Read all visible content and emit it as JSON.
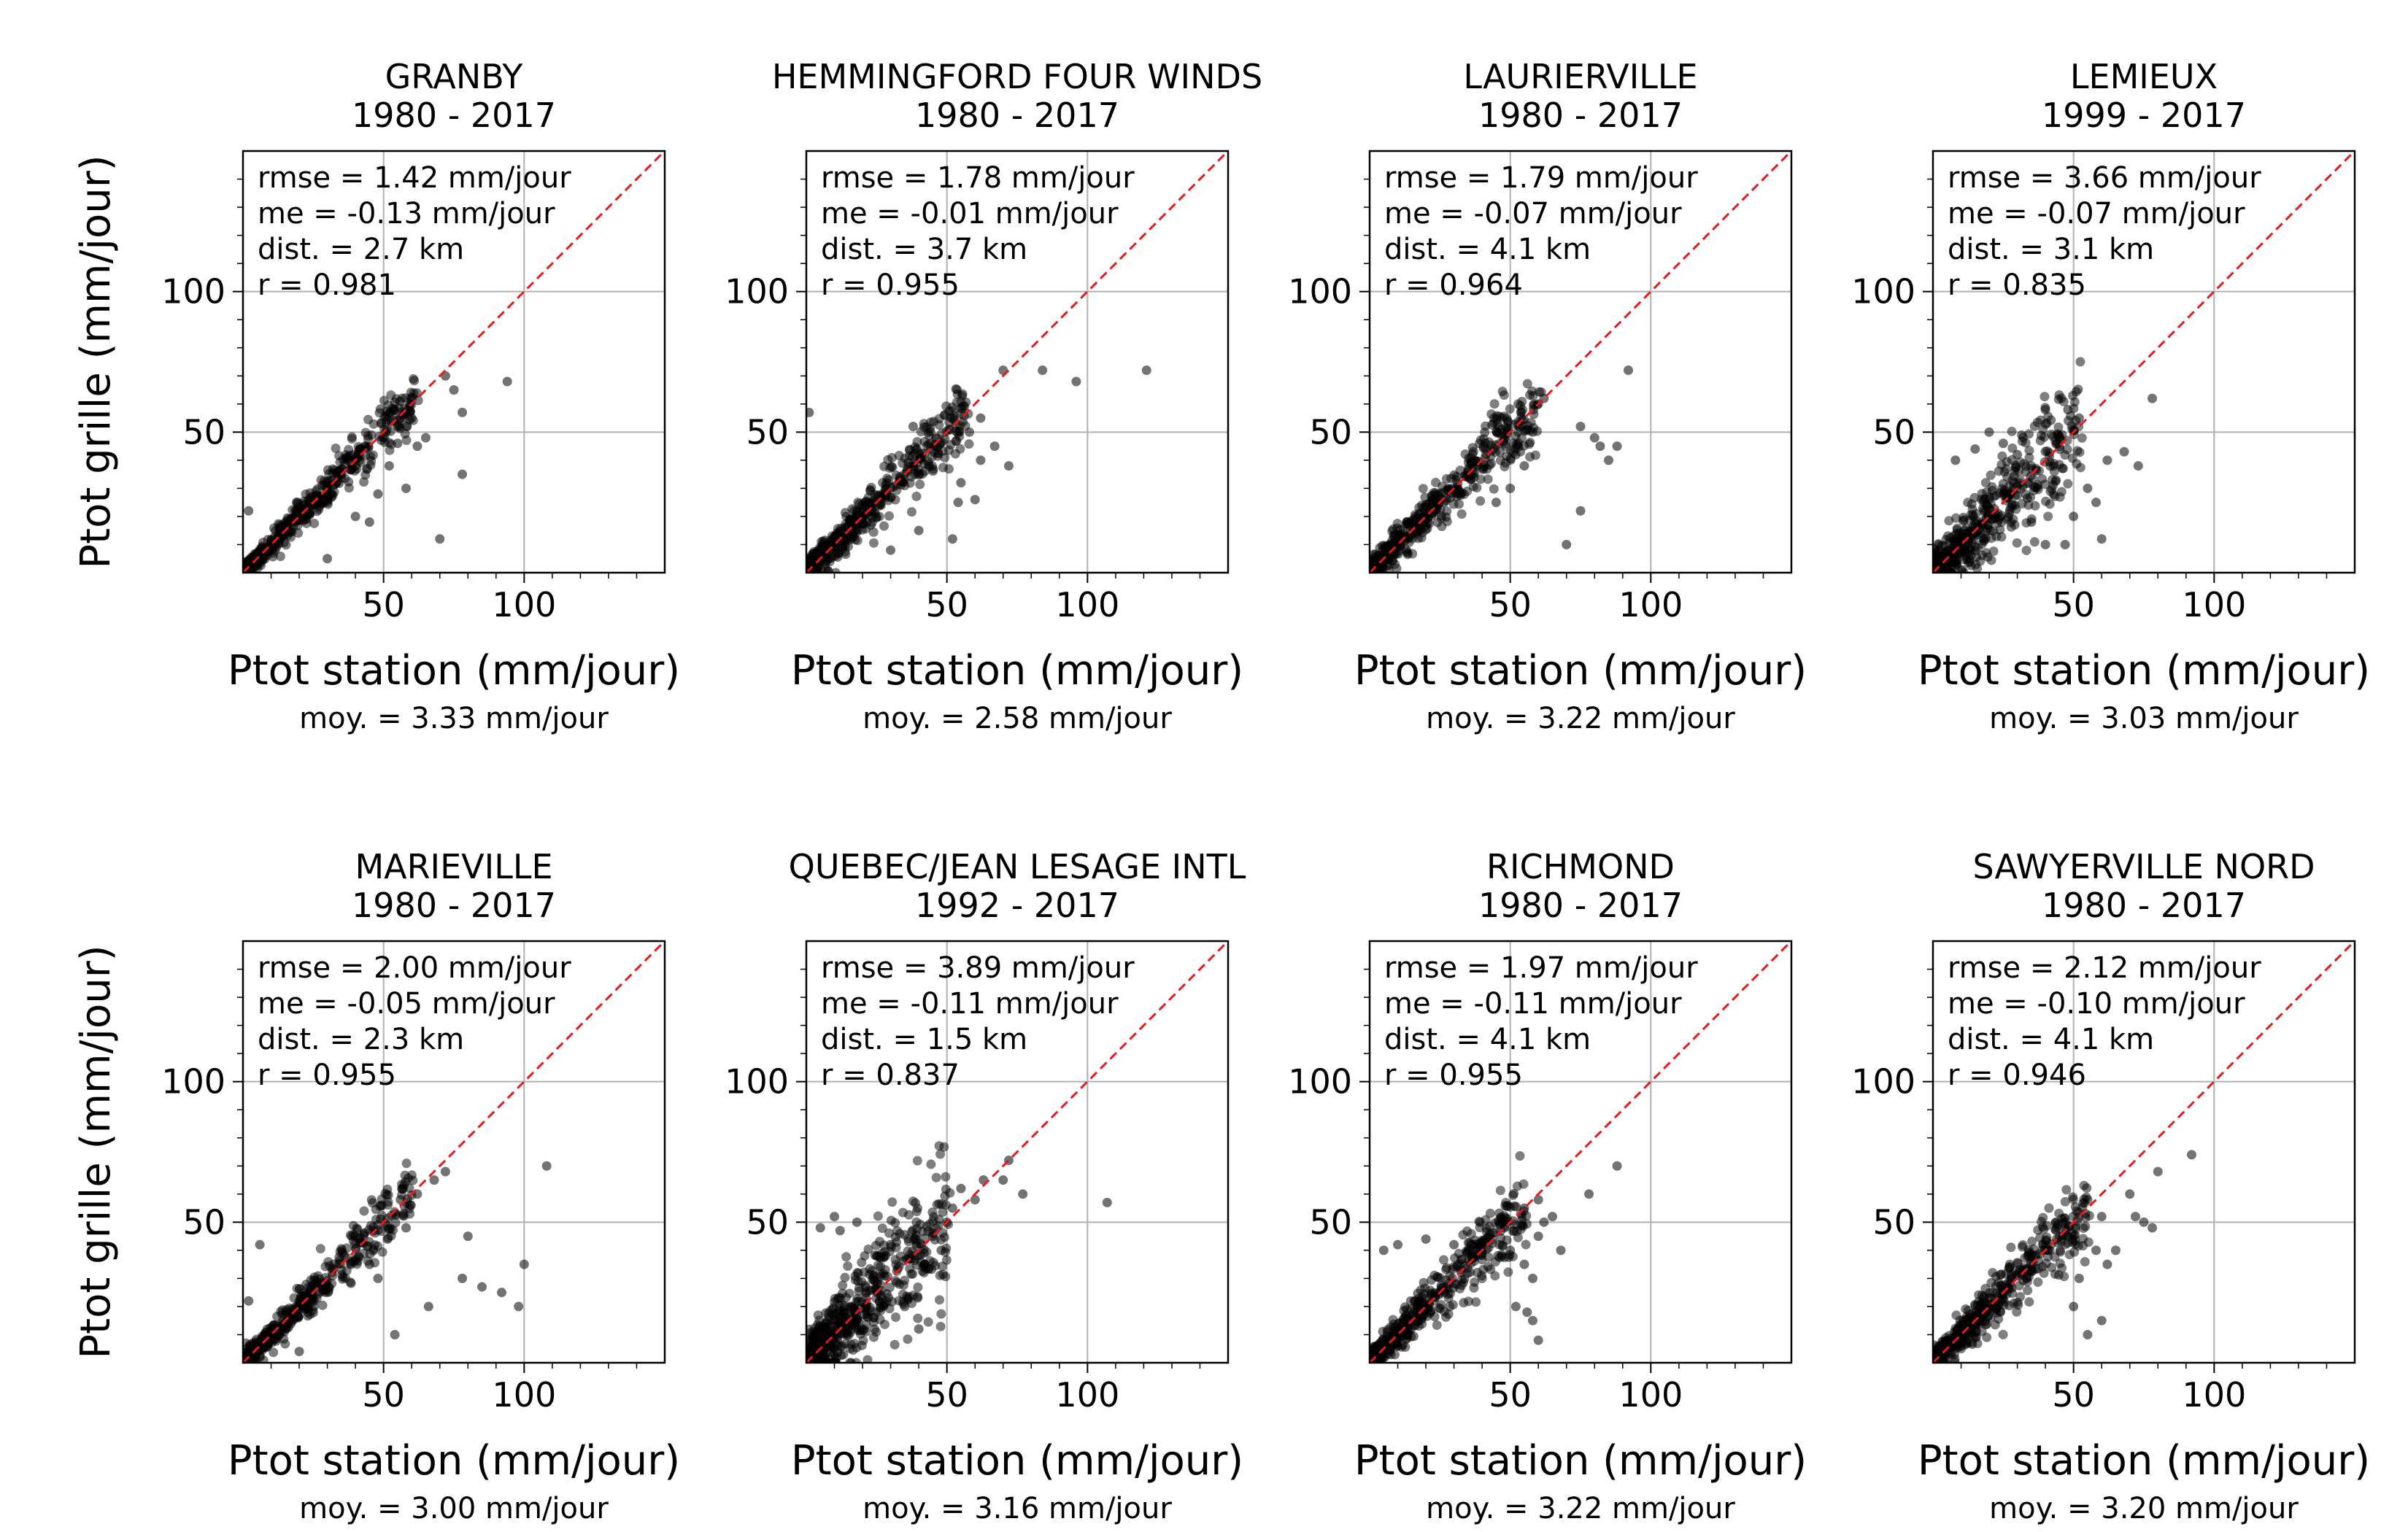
{
  "figure": {
    "ylabel": "Ptot grille (mm/jour)",
    "xlabel": "Ptot station (mm/jour)",
    "xticks": [
      50,
      100
    ],
    "yticks": [
      50,
      100
    ],
    "xlim": [
      0,
      150
    ],
    "ylim": [
      0,
      150
    ],
    "point_color": "#000000",
    "line_color": "#e41a1c",
    "grid_color": "#b0b0b0",
    "marker_type": "scatter"
  },
  "chart_data": [
    {
      "type": "scatter",
      "title": "GRANBY",
      "period": "1980 - 2017",
      "stats": [
        "rmse = 1.42 mm/jour",
        "me = -0.13 mm/jour",
        "dist. = 2.7 km",
        "r = 0.981"
      ],
      "mean_label": "moy. = 3.33 mm/jour",
      "outliers": [
        [
          72,
          70
        ],
        [
          94,
          68
        ],
        [
          75,
          65
        ],
        [
          78,
          57
        ],
        [
          70,
          12
        ],
        [
          78,
          35
        ],
        [
          60,
          55
        ],
        [
          55,
          46
        ],
        [
          52,
          38
        ],
        [
          48,
          28
        ],
        [
          65,
          48
        ],
        [
          62,
          45
        ],
        [
          40,
          20
        ],
        [
          45,
          18
        ],
        [
          58,
          30
        ],
        [
          2,
          22
        ],
        [
          30,
          5
        ]
      ],
      "cluster": {
        "max": 62,
        "spread": 3.5,
        "n": 520
      }
    },
    {
      "type": "scatter",
      "title": "HEMMINGFORD FOUR WINDS",
      "period": "1980 - 2017",
      "stats": [
        "rmse = 1.78 mm/jour",
        "me = -0.01 mm/jour",
        "dist. = 3.7 km",
        "r = 0.955"
      ],
      "mean_label": "moy. = 2.58 mm/jour",
      "outliers": [
        [
          84,
          72
        ],
        [
          96,
          68
        ],
        [
          121,
          72
        ],
        [
          70,
          72
        ],
        [
          62,
          55
        ],
        [
          58,
          50
        ],
        [
          67,
          45
        ],
        [
          72,
          38
        ],
        [
          54,
          25
        ],
        [
          62,
          40
        ],
        [
          55,
          32
        ],
        [
          52,
          12
        ],
        [
          60,
          26
        ],
        [
          1,
          57
        ],
        [
          30,
          8
        ],
        [
          40,
          15
        ],
        [
          38,
          52
        ]
      ],
      "cluster": {
        "max": 58,
        "spread": 5,
        "n": 520
      }
    },
    {
      "type": "scatter",
      "title": "LAURIERVILLE",
      "period": "1980 - 2017",
      "stats": [
        "rmse = 1.79 mm/jour",
        "me = -0.07 mm/jour",
        "dist. = 4.1 km",
        "r = 0.964"
      ],
      "mean_label": "moy. = 3.22 mm/jour",
      "outliers": [
        [
          92,
          72
        ],
        [
          80,
          48
        ],
        [
          75,
          52
        ],
        [
          88,
          45
        ],
        [
          85,
          40
        ],
        [
          75,
          22
        ],
        [
          70,
          10
        ],
        [
          82,
          45
        ],
        [
          58,
          50
        ],
        [
          60,
          60
        ],
        [
          62,
          62
        ],
        [
          55,
          38
        ],
        [
          50,
          30
        ],
        [
          45,
          25
        ],
        [
          48,
          48
        ],
        [
          52,
          42
        ]
      ],
      "cluster": {
        "max": 60,
        "spread": 5,
        "n": 520
      }
    },
    {
      "type": "scatter",
      "title": "LEMIEUX",
      "period": "1999 - 2017",
      "stats": [
        "rmse = 3.66 mm/jour",
        "me = -0.07 mm/jour",
        "dist. = 3.1 km",
        "r = 0.835"
      ],
      "mean_label": "moy. = 3.03 mm/jour",
      "outliers": [
        [
          78,
          62
        ],
        [
          68,
          43
        ],
        [
          73,
          38
        ],
        [
          62,
          40
        ],
        [
          48,
          58
        ],
        [
          40,
          58
        ],
        [
          50,
          20
        ],
        [
          47,
          10
        ],
        [
          58,
          25
        ],
        [
          55,
          30
        ],
        [
          52,
          55
        ],
        [
          45,
          48
        ],
        [
          20,
          50
        ],
        [
          25,
          46
        ],
        [
          30,
          42
        ],
        [
          35,
          18
        ],
        [
          8,
          40
        ],
        [
          15,
          44
        ],
        [
          40,
          10
        ],
        [
          60,
          12
        ]
      ],
      "cluster": {
        "max": 52,
        "spread": 9,
        "n": 520
      }
    },
    {
      "type": "scatter",
      "title": "MARIEVILLE",
      "period": "1980 - 2017",
      "stats": [
        "rmse = 2.00 mm/jour",
        "me = -0.05 mm/jour",
        "dist. = 2.3 km",
        "r = 0.955"
      ],
      "mean_label": "moy. = 3.00 mm/jour",
      "outliers": [
        [
          108,
          70
        ],
        [
          80,
          45
        ],
        [
          78,
          30
        ],
        [
          85,
          27
        ],
        [
          100,
          35
        ],
        [
          92,
          25
        ],
        [
          98,
          20
        ],
        [
          66,
          20
        ],
        [
          72,
          68
        ],
        [
          68,
          65
        ],
        [
          62,
          60
        ],
        [
          58,
          48
        ],
        [
          56,
          58
        ],
        [
          54,
          10
        ],
        [
          6,
          42
        ],
        [
          2,
          22
        ],
        [
          20,
          4
        ],
        [
          45,
          35
        ],
        [
          48,
          30
        ]
      ],
      "cluster": {
        "max": 60,
        "spread": 4,
        "n": 520
      }
    },
    {
      "type": "scatter",
      "title": "QUEBEC/JEAN LESAGE INTL",
      "period": "1992 - 2017",
      "stats": [
        "rmse = 3.89 mm/jour",
        "me = -0.11 mm/jour",
        "dist. = 1.5 km",
        "r = 0.837"
      ],
      "mean_label": "moy. = 3.16 mm/jour",
      "outliers": [
        [
          72,
          72
        ],
        [
          77,
          60
        ],
        [
          107,
          57
        ],
        [
          70,
          65
        ],
        [
          63,
          65
        ],
        [
          55,
          62
        ],
        [
          52,
          55
        ],
        [
          50,
          50
        ],
        [
          48,
          40
        ],
        [
          45,
          45
        ],
        [
          42,
          35
        ],
        [
          10,
          52
        ],
        [
          12,
          47
        ],
        [
          18,
          50
        ],
        [
          5,
          48
        ],
        [
          30,
          42
        ],
        [
          25,
          38
        ],
        [
          40,
          12
        ],
        [
          35,
          20
        ],
        [
          60,
          58
        ]
      ],
      "cluster": {
        "max": 50,
        "spread": 10,
        "n": 620
      }
    },
    {
      "type": "scatter",
      "title": "RICHMOND",
      "period": "1980 - 2017",
      "stats": [
        "rmse = 1.97 mm/jour",
        "me = -0.11 mm/jour",
        "dist. = 4.1 km",
        "r = 0.955"
      ],
      "mean_label": "moy. = 3.22 mm/jour",
      "outliers": [
        [
          88,
          70
        ],
        [
          78,
          60
        ],
        [
          60,
          58
        ],
        [
          55,
          55
        ],
        [
          65,
          52
        ],
        [
          62,
          50
        ],
        [
          60,
          45
        ],
        [
          68,
          40
        ],
        [
          55,
          35
        ],
        [
          58,
          30
        ],
        [
          52,
          20
        ],
        [
          60,
          8
        ],
        [
          58,
          15
        ],
        [
          10,
          42
        ],
        [
          5,
          40
        ],
        [
          20,
          44
        ],
        [
          30,
          42
        ],
        [
          48,
          48
        ],
        [
          50,
          40
        ],
        [
          56,
          18
        ]
      ],
      "cluster": {
        "max": 55,
        "spread": 5,
        "n": 520
      }
    },
    {
      "type": "scatter",
      "title": "SAWYERVILLE NORD",
      "period": "1980 - 2017",
      "stats": [
        "rmse = 2.12 mm/jour",
        "me = -0.10 mm/jour",
        "dist. = 4.1 km",
        "r = 0.946"
      ],
      "mean_label": "moy. = 3.20 mm/jour",
      "outliers": [
        [
          92,
          74
        ],
        [
          80,
          68
        ],
        [
          75,
          50
        ],
        [
          72,
          52
        ],
        [
          78,
          48
        ],
        [
          60,
          52
        ],
        [
          55,
          58
        ],
        [
          58,
          40
        ],
        [
          52,
          30
        ],
        [
          50,
          20
        ],
        [
          62,
          35
        ],
        [
          65,
          40
        ],
        [
          60,
          15
        ],
        [
          55,
          10
        ],
        [
          48,
          45
        ],
        [
          44,
          44
        ],
        [
          70,
          60
        ]
      ],
      "cluster": {
        "max": 55,
        "spread": 5,
        "n": 520
      }
    }
  ]
}
